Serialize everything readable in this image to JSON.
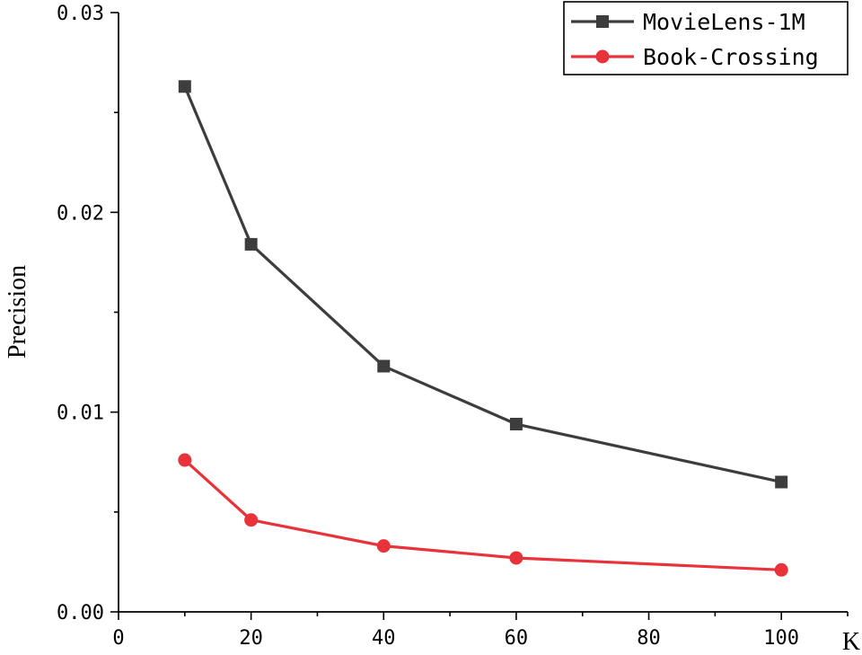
{
  "chart_data": {
    "type": "line",
    "xlabel": "K",
    "ylabel": "Precision",
    "xlim": [
      0,
      110
    ],
    "ylim": [
      0,
      0.03
    ],
    "x_ticks": [
      "0",
      "20",
      "40",
      "60",
      "80",
      "100"
    ],
    "y_ticks": [
      "0.00",
      "0.01",
      "0.02",
      "0.03"
    ],
    "grid": false,
    "legend_position": "top-right",
    "series": [
      {
        "name": "MovieLens-1M",
        "marker": "square",
        "color": "#3d3d3d",
        "x": [
          10,
          20,
          40,
          60,
          100
        ],
        "y": [
          0.0263,
          0.0184,
          0.0123,
          0.0094,
          0.0065
        ]
      },
      {
        "name": "Book-Crossing",
        "marker": "circle",
        "color": "#e8333a",
        "x": [
          10,
          20,
          40,
          60,
          100
        ],
        "y": [
          0.0076,
          0.0046,
          0.0033,
          0.0027,
          0.0021
        ]
      }
    ]
  }
}
